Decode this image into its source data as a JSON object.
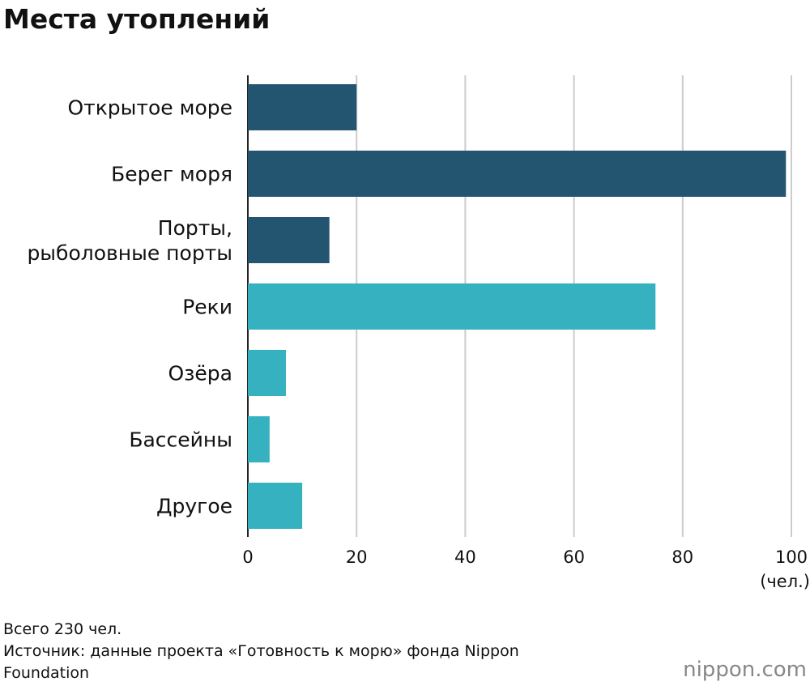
{
  "chart_data": {
    "type": "barh",
    "title": "Места утоплений",
    "categories": [
      "Открытое море",
      "Берег моря",
      "Порты,\nрыболовные порты",
      "Реки",
      "Озёра",
      "Бассейны",
      "Другое"
    ],
    "values": [
      20,
      99,
      15,
      75,
      7,
      4,
      10
    ],
    "colors": [
      "#235571",
      "#235571",
      "#235571",
      "#35b1bf",
      "#35b1bf",
      "#35b1bf",
      "#35b1bf"
    ],
    "xlim": [
      0,
      100
    ],
    "xticks": [
      0,
      20,
      40,
      60,
      80,
      100
    ],
    "grid": true,
    "x_unit": "(чел.)",
    "notes": [
      "Всего 230 чел.",
      "Источник: данные проекта «Готовность к морю» фонда Nippon Foundation"
    ],
    "logo": "nippon.com"
  }
}
